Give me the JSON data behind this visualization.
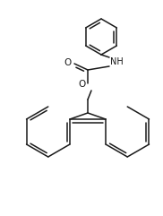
{
  "bg_color": "#ffffff",
  "line_color": "#1a1a1a",
  "line_width": 1.1,
  "font_size_label": 6.5,
  "figsize": [
    1.82,
    2.41
  ],
  "dpi": 100,
  "xlim": [
    0,
    182
  ],
  "ylim": [
    0,
    241
  ]
}
